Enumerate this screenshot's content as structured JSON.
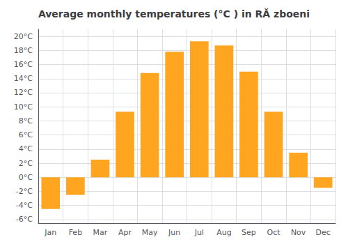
{
  "chart_data": {
    "type": "bar",
    "title": "Average monthly temperatures (°C ) in RĂ zboeni",
    "categories": [
      "Jan",
      "Feb",
      "Mar",
      "Apr",
      "May",
      "Jun",
      "Jul",
      "Aug",
      "Sep",
      "Oct",
      "Nov",
      "Dec"
    ],
    "values": [
      -4.5,
      -2.5,
      2.5,
      9.3,
      14.8,
      17.8,
      19.3,
      18.7,
      15.0,
      9.3,
      3.5,
      -1.5
    ],
    "color": "#FFA520",
    "ylim": [
      -6.5,
      21.0
    ],
    "yticks": [
      {
        "value": -6,
        "label": "-6°C"
      },
      {
        "value": -4,
        "label": "-4°C"
      },
      {
        "value": -2,
        "label": "-2°C"
      },
      {
        "value": 0,
        "label": "0°C"
      },
      {
        "value": 2,
        "label": "2°C"
      },
      {
        "value": 4,
        "label": "4°C"
      },
      {
        "value": 6,
        "label": "6°C"
      },
      {
        "value": 8,
        "label": "8°C"
      },
      {
        "value": 10,
        "label": "10°C"
      },
      {
        "value": 12,
        "label": "12°C"
      },
      {
        "value": 14,
        "label": "14°C"
      },
      {
        "value": 16,
        "label": "16°C"
      },
      {
        "value": 18,
        "label": "18°C"
      },
      {
        "value": 20,
        "label": "20°C"
      }
    ],
    "grid": true
  }
}
